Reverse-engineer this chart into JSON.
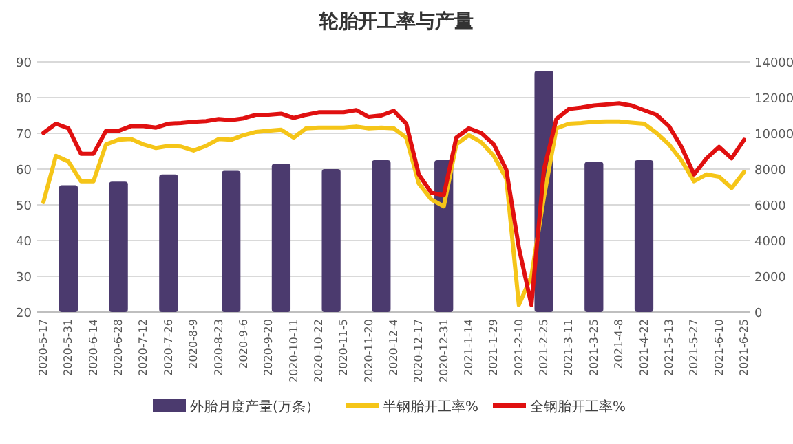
{
  "chart_data": {
    "type": "line",
    "title": "轮胎开工率与产量",
    "categories": [
      "2020-5-17",
      null,
      "2020-5-31",
      null,
      "2020-6-14",
      null,
      "2020-6-28",
      null,
      "2020-7-12",
      null,
      "2020-7-26",
      null,
      "2020-8-9",
      null,
      "2020-8-23",
      null,
      "2020-9-6",
      null,
      "2020-9-20",
      null,
      "2020-10-11",
      null,
      "2020-10-22",
      null,
      "2020-11-5",
      null,
      "2020-11-20",
      null,
      "2020-12-4",
      null,
      "2020-12-17",
      null,
      "2020-12-31",
      null,
      "2021-1-14",
      null,
      "2021-1-29",
      null,
      "2021-2-10",
      null,
      "2021-2-25",
      null,
      "2021-3-11",
      null,
      "2021-3-25",
      null,
      "2021-4-8",
      null,
      "2021-4-22",
      null,
      "2021-5-13",
      null,
      "2021-5-27",
      null,
      "2021-6-10",
      null,
      "2021-6-25"
    ],
    "series": [
      {
        "name": "外胎月度产量(万条）",
        "type": "bar",
        "axis": "y2",
        "color": "#4b3a6e",
        "values": [
          null,
          null,
          7100,
          null,
          null,
          null,
          7300,
          null,
          null,
          null,
          7700,
          null,
          null,
          null,
          null,
          7900,
          null,
          null,
          null,
          8300,
          null,
          null,
          null,
          8000,
          null,
          null,
          null,
          8500,
          null,
          null,
          null,
          null,
          8500,
          null,
          null,
          null,
          null,
          null,
          null,
          null,
          13500,
          null,
          null,
          null,
          8400,
          null,
          null,
          null,
          8500,
          null,
          null,
          null,
          null,
          null,
          null,
          null,
          null
        ]
      },
      {
        "name": "半钢胎开工率%",
        "color": "#f5c518",
        "values": [
          50.8,
          63.7,
          62.1,
          56.6,
          56.6,
          66.9,
          68.2,
          68.4,
          66.9,
          65.9,
          66.5,
          66.3,
          65.2,
          66.5,
          68.4,
          68.2,
          69.5,
          70.4,
          70.7,
          71,
          68.8,
          71.4,
          71.6,
          71.6,
          71.6,
          71.9,
          71.4,
          71.6,
          71.4,
          68.8,
          56,
          51.5,
          49.6,
          66.9,
          69.5,
          67.5,
          63.7,
          57.3,
          22,
          30,
          52.1,
          71.4,
          72.7,
          72.9,
          73.2,
          73.3,
          73.3,
          73,
          72.7,
          70.1,
          66.9,
          62.4,
          56.6,
          58.5,
          57.9,
          54.7,
          59.2
        ]
      },
      {
        "name": "全钢胎开工率%",
        "color": "#e01010",
        "values": [
          70.1,
          72.7,
          71.4,
          64.3,
          64.3,
          70.7,
          70.7,
          72,
          72,
          71.6,
          72.7,
          72.9,
          73.2,
          73.4,
          74,
          73.7,
          74.2,
          75.2,
          75.2,
          75.5,
          74.3,
          75.2,
          75.9,
          75.9,
          75.9,
          76.5,
          74.6,
          75,
          76.3,
          72.7,
          58.5,
          53.4,
          52.7,
          68.8,
          71.4,
          70.1,
          66.9,
          59.8,
          38,
          22,
          59.8,
          74,
          76.8,
          77.2,
          77.8,
          78.1,
          78.4,
          77.8,
          76.5,
          75.2,
          72,
          66.2,
          58.5,
          63,
          66.2,
          63,
          68.2
        ]
      }
    ],
    "ylim": [
      20,
      90
    ],
    "yticks": [
      20,
      30,
      40,
      50,
      60,
      70,
      80,
      90
    ],
    "y2lim": [
      0,
      14000
    ],
    "y2ticks": [
      0,
      2000,
      4000,
      6000,
      8000,
      10000,
      12000,
      14000
    ],
    "grid": "y",
    "legend": "bottom",
    "marker": "none",
    "line_style": "solid"
  }
}
